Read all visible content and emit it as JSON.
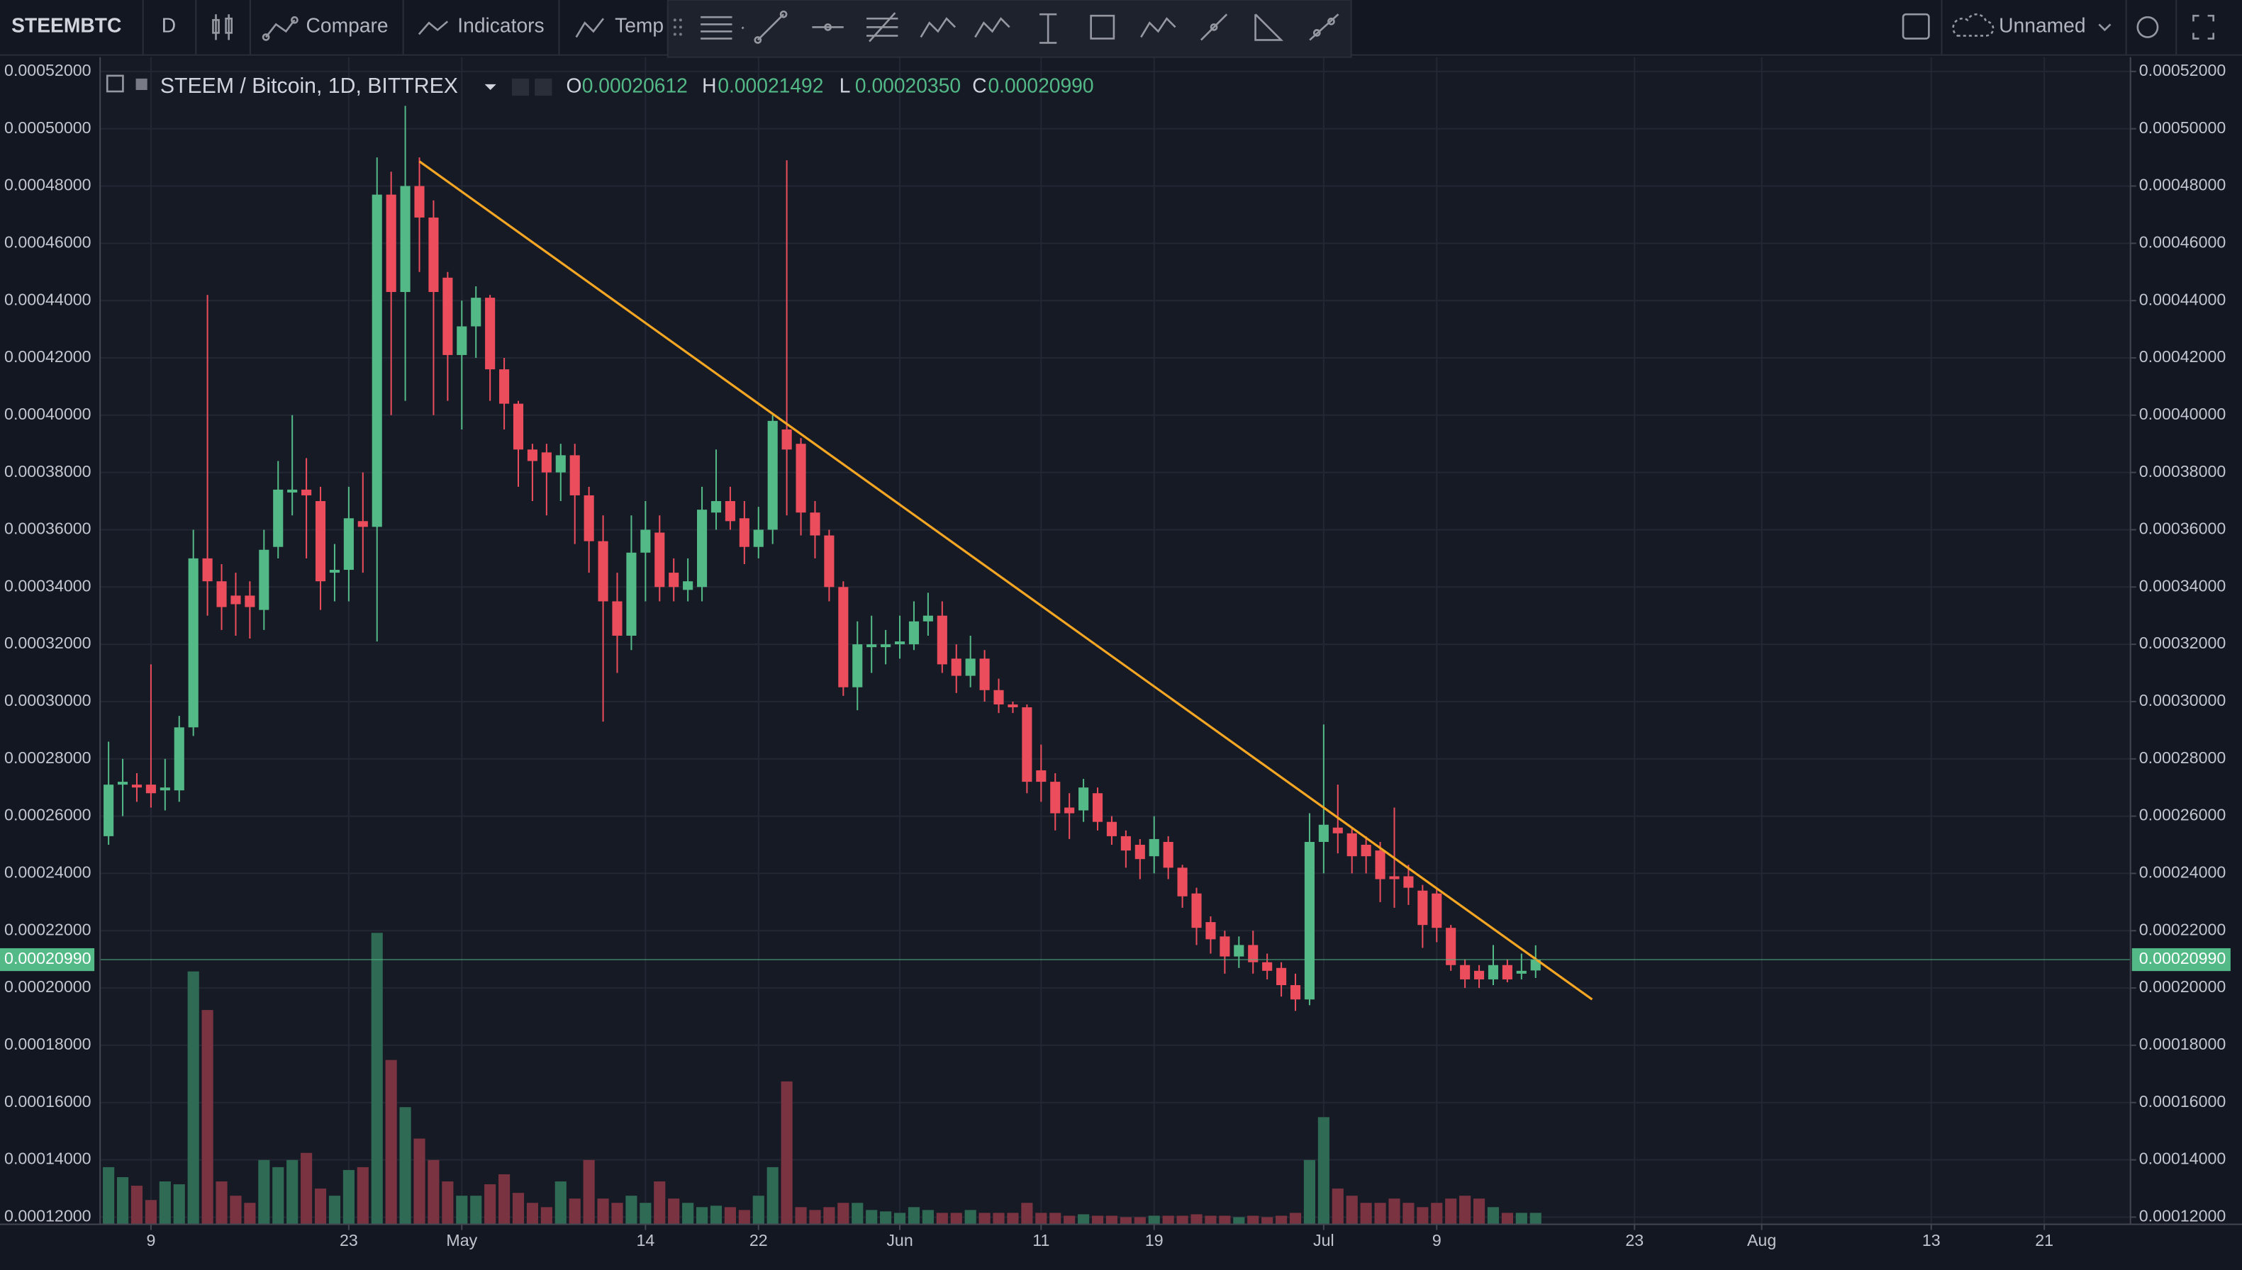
{
  "toolbar": {
    "symbol": "STEEMBTC",
    "interval": "D",
    "compare": "Compare",
    "indicators": "Indicators",
    "templates": "Temp",
    "layout_name": "Unnamed"
  },
  "chart_data": {
    "type": "candlestick",
    "title": "STEEM / Bitcoin, 1D, BITTREX",
    "ohlc_legend": [
      {
        "key": "O",
        "label": "0.00020612"
      },
      {
        "key": "H",
        "label": "0.00021492"
      },
      {
        "key": "L",
        "label": "0.00020350"
      },
      {
        "key": "C",
        "label": "0.00020990"
      }
    ],
    "up_color": "#53b987",
    "down_color": "#eb4d5c",
    "volume_up_color": "#2f6a55",
    "volume_down_color": "#7a3340",
    "xlim": [
      95.4,
      239.1
    ],
    "ylim": [
      0.0001175,
      0.000525
    ],
    "grid": true,
    "xticks": [
      {
        "value": 99,
        "label": "9"
      },
      {
        "value": 113,
        "label": "23"
      },
      {
        "value": 121,
        "label": "May"
      },
      {
        "value": 134,
        "label": "14"
      },
      {
        "value": 142,
        "label": "22"
      },
      {
        "value": 152,
        "label": "Jun"
      },
      {
        "value": 162,
        "label": "11"
      },
      {
        "value": 170,
        "label": "19"
      },
      {
        "value": 182,
        "label": "Jul"
      },
      {
        "value": 190,
        "label": "9"
      },
      {
        "value": 204,
        "label": "23"
      },
      {
        "value": 213,
        "label": "Aug"
      },
      {
        "value": 225,
        "label": "13"
      },
      {
        "value": 233,
        "label": "21"
      }
    ],
    "yticks": [
      {
        "value": 0.00012,
        "label": "0.00012000"
      },
      {
        "value": 0.00014,
        "label": "0.00014000"
      },
      {
        "value": 0.00016,
        "label": "0.00016000"
      },
      {
        "value": 0.00018,
        "label": "0.00018000"
      },
      {
        "value": 0.0002,
        "label": "0.00020000"
      },
      {
        "value": 0.00022,
        "label": "0.00022000"
      },
      {
        "value": 0.00024,
        "label": "0.00024000"
      },
      {
        "value": 0.00026,
        "label": "0.00026000"
      },
      {
        "value": 0.00028,
        "label": "0.00028000"
      },
      {
        "value": 0.0003,
        "label": "0.00030000"
      },
      {
        "value": 0.00032,
        "label": "0.00032000"
      },
      {
        "value": 0.00034,
        "label": "0.00034000"
      },
      {
        "value": 0.00036,
        "label": "0.00036000"
      },
      {
        "value": 0.00038,
        "label": "0.00038000"
      },
      {
        "value": 0.0004,
        "label": "0.00040000"
      },
      {
        "value": 0.00042,
        "label": "0.00042000"
      },
      {
        "value": 0.00044,
        "label": "0.00044000"
      },
      {
        "value": 0.00046,
        "label": "0.00046000"
      },
      {
        "value": 0.00048,
        "label": "0.00048000"
      },
      {
        "value": 0.0005,
        "label": "0.00050000"
      },
      {
        "value": 0.00052,
        "label": "0.00052000"
      }
    ],
    "x": [
      96,
      97,
      98,
      99,
      100,
      101,
      102,
      103,
      104,
      105,
      106,
      107,
      108,
      109,
      110,
      111,
      112,
      113,
      114,
      115,
      116,
      117,
      118,
      119,
      120,
      121,
      122,
      123,
      124,
      125,
      126,
      127,
      128,
      129,
      130,
      131,
      132,
      133,
      134,
      135,
      136,
      137,
      138,
      139,
      140,
      141,
      142,
      143,
      144,
      145,
      146,
      147,
      148,
      149,
      150,
      151,
      152,
      153,
      154,
      155,
      156,
      157,
      158,
      159,
      160,
      161,
      162,
      163,
      164,
      165,
      166,
      167,
      168,
      169,
      170,
      171,
      172,
      173,
      174,
      175,
      176,
      177,
      178,
      179,
      180,
      181,
      182,
      183,
      184,
      185,
      186,
      187,
      188,
      189,
      190,
      191,
      192,
      193,
      194,
      195,
      196,
      197
    ],
    "open": [
      0.000253,
      0.000271,
      0.000271,
      0.000271,
      0.000269,
      0.000269,
      0.000291,
      0.00035,
      0.000342,
      0.000337,
      0.000337,
      0.000332,
      0.000354,
      0.000373,
      0.000374,
      0.00037,
      0.000345,
      0.000346,
      0.000363,
      0.000361,
      0.000477,
      0.000443,
      0.00048,
      0.000469,
      0.000448,
      0.000421,
      0.000431,
      0.000441,
      0.000416,
      0.000404,
      0.000388,
      0.000387,
      0.00038,
      0.000386,
      0.000372,
      0.000356,
      0.000335,
      0.000323,
      0.000352,
      0.000359,
      0.000345,
      0.000339,
      0.00034,
      0.000366,
      0.00037,
      0.000364,
      0.000354,
      0.00036,
      0.000395,
      0.00039,
      0.000366,
      0.000358,
      0.00034,
      0.000305,
      0.000319,
      0.000319,
      0.00032,
      0.00032,
      0.000328,
      0.00033,
      0.000315,
      0.000309,
      0.000315,
      0.000304,
      0.000299,
      0.000298,
      0.000276,
      0.000272,
      0.000263,
      0.000262,
      0.000268,
      0.000258,
      0.000253,
      0.00025,
      0.000246,
      0.000251,
      0.000242,
      0.000233,
      0.000223,
      0.000218,
      0.000211,
      0.000215,
      0.000209,
      0.000207,
      0.000201,
      0.000196,
      0.000251,
      0.000256,
      0.000254,
      0.00025,
      0.000248,
      0.000239,
      0.000239,
      0.000234,
      0.000233,
      0.000221,
      0.000208,
      0.000206,
      0.000203,
      0.000208,
      0.000205,
      0.00020612
    ],
    "high": [
      0.000286,
      0.00028,
      0.000275,
      0.000313,
      0.00028,
      0.000295,
      0.00036,
      0.000442,
      0.000348,
      0.000345,
      0.000342,
      0.00036,
      0.000384,
      0.0004,
      0.000385,
      0.000375,
      0.000355,
      0.000375,
      0.00038,
      0.00049,
      0.000485,
      0.000508,
      0.00049,
      0.000475,
      0.00045,
      0.00044,
      0.000445,
      0.000442,
      0.00042,
      0.000405,
      0.00039,
      0.00039,
      0.00039,
      0.00039,
      0.000375,
      0.000365,
      0.000345,
      0.000365,
      0.00037,
      0.000365,
      0.00035,
      0.00035,
      0.000375,
      0.000388,
      0.000375,
      0.00037,
      0.000368,
      0.0004,
      0.000489,
      0.000392,
      0.00037,
      0.00036,
      0.000342,
      0.000328,
      0.00033,
      0.000325,
      0.00033,
      0.000335,
      0.000338,
      0.000335,
      0.00032,
      0.000323,
      0.000318,
      0.000308,
      0.0003,
      0.000299,
      0.000285,
      0.000275,
      0.000268,
      0.000273,
      0.00027,
      0.00026,
      0.000255,
      0.000252,
      0.00026,
      0.000253,
      0.000243,
      0.000235,
      0.000225,
      0.00022,
      0.000218,
      0.00022,
      0.000212,
      0.000209,
      0.000205,
      0.000261,
      0.000292,
      0.000271,
      0.000256,
      0.000253,
      0.000251,
      0.000263,
      0.000243,
      0.000236,
      0.000235,
      0.000222,
      0.00021,
      0.000208,
      0.000215,
      0.00021,
      0.000212,
      0.00021492
    ],
    "low": [
      0.00025,
      0.00026,
      0.000265,
      0.000263,
      0.000262,
      0.000265,
      0.000288,
      0.00033,
      0.000325,
      0.000323,
      0.000322,
      0.000325,
      0.00035,
      0.000365,
      0.00035,
      0.000332,
      0.000335,
      0.000335,
      0.000345,
      0.000321,
      0.0004,
      0.000405,
      0.00045,
      0.0004,
      0.000405,
      0.000395,
      0.00042,
      0.000405,
      0.000395,
      0.000375,
      0.00037,
      0.000365,
      0.00037,
      0.000355,
      0.000345,
      0.000293,
      0.00031,
      0.000318,
      0.000335,
      0.000335,
      0.000335,
      0.000335,
      0.000335,
      0.00036,
      0.00036,
      0.000348,
      0.00035,
      0.000355,
      0.000365,
      0.000358,
      0.00035,
      0.000335,
      0.000302,
      0.000297,
      0.00031,
      0.000313,
      0.000315,
      0.000318,
      0.000323,
      0.00031,
      0.000303,
      0.000305,
      0.0003,
      0.000296,
      0.000296,
      0.000268,
      0.000265,
      0.000255,
      0.000252,
      0.000258,
      0.000255,
      0.00025,
      0.000242,
      0.000238,
      0.00024,
      0.000238,
      0.000228,
      0.000215,
      0.000212,
      0.000205,
      0.000207,
      0.000205,
      0.000203,
      0.000197,
      0.000192,
      0.000194,
      0.00024,
      0.000247,
      0.00024,
      0.00024,
      0.00023,
      0.000228,
      0.000229,
      0.000214,
      0.000216,
      0.000206,
      0.0002,
      0.0002,
      0.000201,
      0.000202,
      0.000203,
      0.0002035
    ],
    "close": [
      0.000271,
      0.000272,
      0.00027,
      0.000268,
      0.00027,
      0.000291,
      0.00035,
      0.000342,
      0.000333,
      0.000334,
      0.000333,
      0.000353,
      0.000374,
      0.000374,
      0.000372,
      0.000342,
      0.000346,
      0.000364,
      0.000361,
      0.000477,
      0.000443,
      0.00048,
      0.000469,
      0.000443,
      0.000421,
      0.000431,
      0.000441,
      0.000416,
      0.000404,
      0.000388,
      0.000384,
      0.00038,
      0.000386,
      0.000372,
      0.000356,
      0.000335,
      0.000323,
      0.000352,
      0.00036,
      0.00034,
      0.00034,
      0.000342,
      0.000367,
      0.00037,
      0.000363,
      0.000354,
      0.00036,
      0.000398,
      0.000388,
      0.000366,
      0.000358,
      0.00034,
      0.000305,
      0.00032,
      0.00032,
      0.00032,
      0.000321,
      0.000328,
      0.00033,
      0.000313,
      0.000309,
      0.000315,
      0.000304,
      0.000299,
      0.000298,
      0.000272,
      0.000272,
      0.000261,
      0.000261,
      0.00027,
      0.000258,
      0.000253,
      0.000248,
      0.000245,
      0.000252,
      0.000242,
      0.000232,
      0.000221,
      0.000217,
      0.000211,
      0.000215,
      0.000209,
      0.000206,
      0.000201,
      0.000196,
      0.000251,
      0.000257,
      0.000254,
      0.000246,
      0.000246,
      0.000238,
      0.000238,
      0.000235,
      0.000222,
      0.000221,
      0.000208,
      0.000203,
      0.000203,
      0.000208,
      0.000203,
      0.000206,
      0.0002099
    ],
    "volume": [
      40,
      33,
      27,
      17,
      30,
      28,
      177,
      150,
      30,
      20,
      15,
      45,
      40,
      45,
      50,
      25,
      20,
      38,
      40,
      204,
      115,
      82,
      60,
      45,
      30,
      20,
      20,
      28,
      35,
      22,
      15,
      12,
      30,
      18,
      45,
      18,
      15,
      20,
      15,
      30,
      18,
      15,
      12,
      13,
      12,
      10,
      20,
      40,
      100,
      12,
      10,
      12,
      15,
      15,
      10,
      9,
      8,
      12,
      10,
      8,
      8,
      10,
      8,
      8,
      8,
      15,
      8,
      8,
      6,
      7,
      6,
      6,
      5,
      5,
      6,
      6,
      6,
      7,
      6,
      6,
      5,
      6,
      5,
      6,
      8,
      45,
      75,
      25,
      20,
      15,
      15,
      18,
      15,
      12,
      15,
      18,
      20,
      18,
      12,
      8,
      8,
      8
    ],
    "trendline": {
      "x": [
        118,
        201
      ],
      "y": [
        0.0004886,
        0.000196
      ],
      "color": "#f5a623"
    }
  }
}
